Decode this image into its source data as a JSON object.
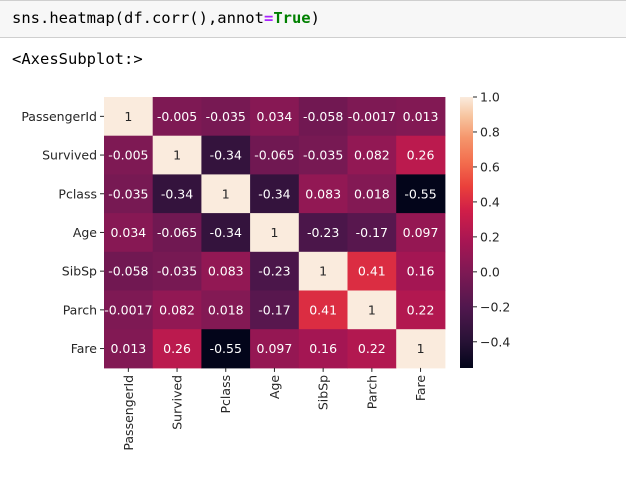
{
  "code_cell": {
    "prefix": "sns.heatmap(df.corr(),annot",
    "operator": "=",
    "keyword": "True",
    "suffix": ")"
  },
  "output_text": "<AxesSubplot:>",
  "chart_data": {
    "type": "heatmap",
    "title": "",
    "xlabel": "",
    "ylabel": "",
    "labels": [
      "PassengerId",
      "Survived",
      "Pclass",
      "Age",
      "SibSp",
      "Parch",
      "Fare"
    ],
    "values": [
      [
        1,
        -0.005,
        -0.035,
        0.034,
        -0.058,
        -0.0017,
        0.013
      ],
      [
        -0.005,
        1,
        -0.34,
        -0.065,
        -0.035,
        0.082,
        0.26
      ],
      [
        -0.035,
        -0.34,
        1,
        -0.34,
        0.083,
        0.018,
        -0.55
      ],
      [
        0.034,
        -0.065,
        -0.34,
        1,
        -0.23,
        -0.17,
        0.097
      ],
      [
        -0.058,
        -0.035,
        0.083,
        -0.23,
        1,
        0.41,
        0.16
      ],
      [
        -0.0017,
        0.082,
        0.018,
        -0.17,
        0.41,
        1,
        0.22
      ],
      [
        0.013,
        0.26,
        -0.55,
        0.097,
        0.16,
        0.22,
        1
      ]
    ],
    "annotations": [
      [
        "1",
        "-0.005",
        "-0.035",
        "0.034",
        "-0.058",
        "-0.0017",
        "0.013"
      ],
      [
        "-0.005",
        "1",
        "-0.34",
        "-0.065",
        "-0.035",
        "0.082",
        "0.26"
      ],
      [
        "-0.035",
        "-0.34",
        "1",
        "-0.34",
        "0.083",
        "0.018",
        "-0.55"
      ],
      [
        "0.034",
        "-0.065",
        "-0.34",
        "1",
        "-0.23",
        "-0.17",
        "0.097"
      ],
      [
        "-0.058",
        "-0.035",
        "0.083",
        "-0.23",
        "1",
        "0.41",
        "0.16"
      ],
      [
        "-0.0017",
        "0.082",
        "0.018",
        "-0.17",
        "0.41",
        "1",
        "0.22"
      ],
      [
        "0.013",
        "0.26",
        "-0.55",
        "0.097",
        "0.16",
        "0.22",
        "1"
      ]
    ],
    "colorbar": {
      "range": [
        -0.55,
        1
      ],
      "ticks": [
        1.0,
        0.8,
        0.6,
        0.4,
        0.2,
        0.0,
        -0.2,
        -0.4
      ],
      "tick_labels": [
        "1.0",
        "0.8",
        "0.6",
        "0.4",
        "0.2",
        "0.0",
        "−0.2",
        "−0.4"
      ],
      "colormap": "rocket"
    }
  }
}
